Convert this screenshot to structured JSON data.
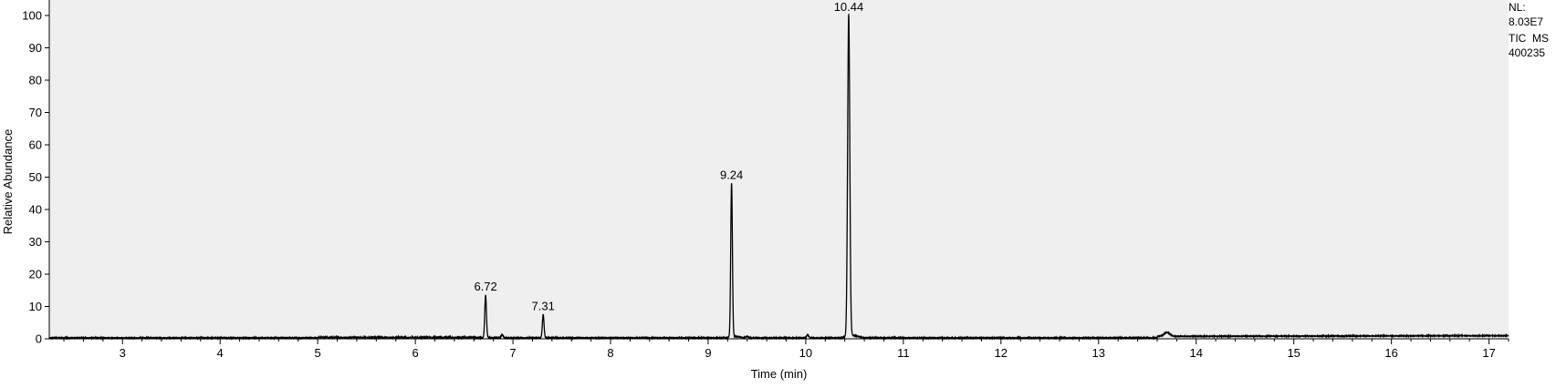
{
  "chart_data": {
    "type": "line",
    "xlabel": "Time (min)",
    "ylabel": "Relative Abundance",
    "xlim": [
      2.25,
      17.2
    ],
    "ylim": [
      0,
      100
    ],
    "x_ticks": [
      3,
      4,
      5,
      6,
      7,
      8,
      9,
      10,
      11,
      12,
      13,
      14,
      15,
      16,
      17
    ],
    "y_ticks": [
      0,
      10,
      20,
      30,
      40,
      50,
      60,
      70,
      80,
      90,
      100
    ],
    "grid": false,
    "colors": {
      "plot_background": "#efefef",
      "trace": "#000000"
    },
    "peaks": [
      {
        "rt": 6.72,
        "label": "6.72",
        "height": 13.5
      },
      {
        "rt": 7.31,
        "label": "7.31",
        "height": 7.5
      },
      {
        "rt": 9.24,
        "label": "9.24",
        "height": 48
      },
      {
        "rt": 10.44,
        "label": "10.44",
        "height": 100
      }
    ],
    "minor_features": [
      {
        "rt": 6.89,
        "height": 1.0
      },
      {
        "rt": 9.4,
        "height": 0.5
      },
      {
        "rt": 10.02,
        "height": 1.0
      },
      {
        "rt": 13.7,
        "height": 1.2
      }
    ],
    "annotations": {
      "nl_label": "NL:",
      "nl_value": "8.03E7",
      "scan_filter": "TIC  MS",
      "sample_name": "400235"
    }
  }
}
